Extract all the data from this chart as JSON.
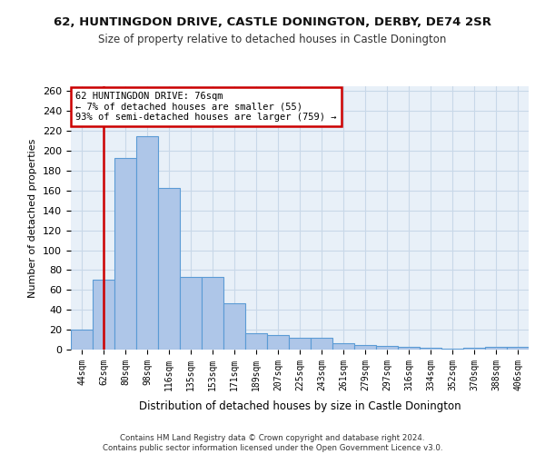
{
  "title": "62, HUNTINGDON DRIVE, CASTLE DONINGTON, DERBY, DE74 2SR",
  "subtitle": "Size of property relative to detached houses in Castle Donington",
  "xlabel": "Distribution of detached houses by size in Castle Donington",
  "ylabel": "Number of detached properties",
  "bar_labels": [
    "44sqm",
    "62sqm",
    "80sqm",
    "98sqm",
    "116sqm",
    "135sqm",
    "153sqm",
    "171sqm",
    "189sqm",
    "207sqm",
    "225sqm",
    "243sqm",
    "261sqm",
    "279sqm",
    "297sqm",
    "316sqm",
    "334sqm",
    "352sqm",
    "370sqm",
    "388sqm",
    "406sqm"
  ],
  "bar_values": [
    20,
    70,
    193,
    215,
    163,
    73,
    73,
    47,
    16,
    15,
    12,
    12,
    6,
    5,
    4,
    3,
    2,
    1,
    2,
    3,
    3
  ],
  "bar_color": "#aec6e8",
  "bar_edge_color": "#5b9bd5",
  "grid_color": "#c8d8e8",
  "background_color": "#e8f0f8",
  "red_line_x": 1.0,
  "annotation_text": "62 HUNTINGDON DRIVE: 76sqm\n← 7% of detached houses are smaller (55)\n93% of semi-detached houses are larger (759) →",
  "annotation_box_color": "#ffffff",
  "annotation_box_edge_color": "#cc0000",
  "footer_line1": "Contains HM Land Registry data © Crown copyright and database right 2024.",
  "footer_line2": "Contains public sector information licensed under the Open Government Licence v3.0.",
  "ylim": [
    0,
    265
  ],
  "yticks": [
    0,
    20,
    40,
    60,
    80,
    100,
    120,
    140,
    160,
    180,
    200,
    220,
    240,
    260
  ]
}
